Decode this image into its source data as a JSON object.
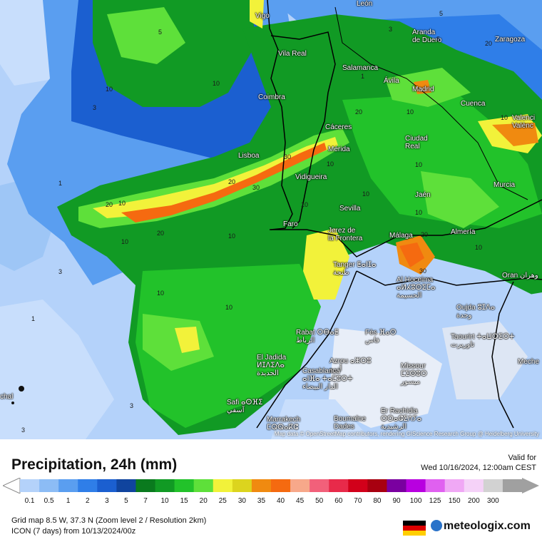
{
  "map": {
    "attribution": "Map data © OpenStreetMap contributors, rendering GIScience Research Group @ Heidelberg University",
    "cities": [
      {
        "id": "leon",
        "name": "León"
      },
      {
        "id": "vigo",
        "name": "Vigo"
      },
      {
        "id": "aranda",
        "name": "Aranda\nde Duero"
      },
      {
        "id": "zaragoza",
        "name": "Zaragoza"
      },
      {
        "id": "vila-real",
        "name": "Vila Real"
      },
      {
        "id": "salamanca",
        "name": "Salamanca"
      },
      {
        "id": "avila",
        "name": "Ávila"
      },
      {
        "id": "madrid",
        "name": "Madrid"
      },
      {
        "id": "coimbra",
        "name": "Coimbra"
      },
      {
        "id": "cuenca",
        "name": "Cuenca"
      },
      {
        "id": "valencia",
        "name": "Valenci\nValènc"
      },
      {
        "id": "caceres",
        "name": "Cáceres"
      },
      {
        "id": "ciudad-real",
        "name": "Ciudad\nReal"
      },
      {
        "id": "lisboa",
        "name": "Lisboa"
      },
      {
        "id": "merida",
        "name": "Mérida"
      },
      {
        "id": "vidigueira",
        "name": "Vidigueira"
      },
      {
        "id": "jaen",
        "name": "Jaén"
      },
      {
        "id": "murcia",
        "name": "Murcia"
      },
      {
        "id": "sevilla",
        "name": "Sevilla"
      },
      {
        "id": "faro",
        "name": "Faro"
      },
      {
        "id": "jerez",
        "name": "Jerez de\nla Frontera"
      },
      {
        "id": "malaga",
        "name": "Málaga"
      },
      {
        "id": "almeria",
        "name": "Almería"
      },
      {
        "id": "tanger",
        "name": "Tanger ⵟⴰⵏⵊⴰ\nطنجة"
      },
      {
        "id": "al-hoceima",
        "name": "Al Hoceima\nⴰⵍⵃⵓⵙⵉⵎⴰ\nالحسيمة"
      },
      {
        "id": "oran",
        "name": "Oran وهران"
      },
      {
        "id": "oujda",
        "name": "Oujda ⵓⵊⴷⴰ\nوجدة"
      },
      {
        "id": "rabat",
        "name": "Rabat ⵔⴱⴰⵟ\nالرباط"
      },
      {
        "id": "fes",
        "name": "Fès ⴼⴰⵙ\nفاس"
      },
      {
        "id": "taourirt",
        "name": "Taourirt ⵜⴰⵡⵔⵉⵔⵜ\nتاوريرت"
      },
      {
        "id": "el-jadida",
        "name": "El Jadida\nⵍⵊⴷⵉⴷⴰ\nالجديدة"
      },
      {
        "id": "azrou",
        "name": "Azrou ⴰⵣⵔⵓ\nأزرو"
      },
      {
        "id": "casablanca",
        "name": "Casablanca\nⴰⵏⴼⴰ ⵜⴰⵎⵓⵔⵜ\nالدار البيضاء"
      },
      {
        "id": "missour",
        "name": "Missour\nⵎⵉⵙⵓⵔ\nميسور"
      },
      {
        "id": "meche",
        "name": "Meche"
      },
      {
        "id": "chal",
        "name": "chal"
      },
      {
        "id": "safi",
        "name": "Safi ⴰⵙⴼⵉ\nآسفي"
      },
      {
        "id": "marrakech",
        "name": "Marrakech\nⵎⵕⵕⴰⴽⵛ"
      },
      {
        "id": "boumalne",
        "name": "Boumalne\nDades"
      },
      {
        "id": "errachidia",
        "name": "Er Rachidia\nⵔⵔⴰⵛⵉⴷⵢⴰ\nالرشيدية"
      }
    ],
    "contour_labels": [
      "10",
      "3",
      "1",
      "5",
      "10",
      "10",
      "20",
      "30",
      "20",
      "30",
      "10",
      "10",
      "20",
      "10",
      "20",
      "10",
      "5",
      "3",
      "10",
      "10",
      "10",
      "3",
      "1",
      "30",
      "20",
      "10",
      "10",
      "10",
      "3",
      "5",
      "10",
      "20",
      "10",
      "3",
      "1"
    ]
  },
  "legend": {
    "title": "Precipitation, 24h (mm)",
    "valid_label": "Valid for",
    "valid_date": "Wed 10/16/2024, 12:00am CEST",
    "ticks": [
      "0.1",
      "0.5",
      "1",
      "2",
      "3",
      "5",
      "7",
      "10",
      "15",
      "20",
      "25",
      "30",
      "35",
      "40",
      "45",
      "50",
      "60",
      "70",
      "80",
      "90",
      "100",
      "125",
      "150",
      "200",
      "300"
    ],
    "colors": [
      "#b4d2fa",
      "#8cbcf5",
      "#5a9ef0",
      "#2f7ee8",
      "#1b5fd0",
      "#10449e",
      "#0a7a1e",
      "#119a24",
      "#22c22a",
      "#5ee03a",
      "#f2f23a",
      "#dcd41e",
      "#f08a10",
      "#f56a10",
      "#f7a88a",
      "#f2607a",
      "#e82a4a",
      "#d2001a",
      "#a80010",
      "#7a00a0",
      "#b800e0",
      "#e060f0",
      "#f0a8f5",
      "#f5d2f8",
      "#d2d2d2",
      "#a0a0a0"
    ]
  },
  "grid_info": "Grid map 8.5 W, 37.3 N (Zoom level 2 / Resolution 2km)",
  "model_info": "ICON (7 days) from 10/13/2024/00z",
  "brand": "meteologix.com"
}
